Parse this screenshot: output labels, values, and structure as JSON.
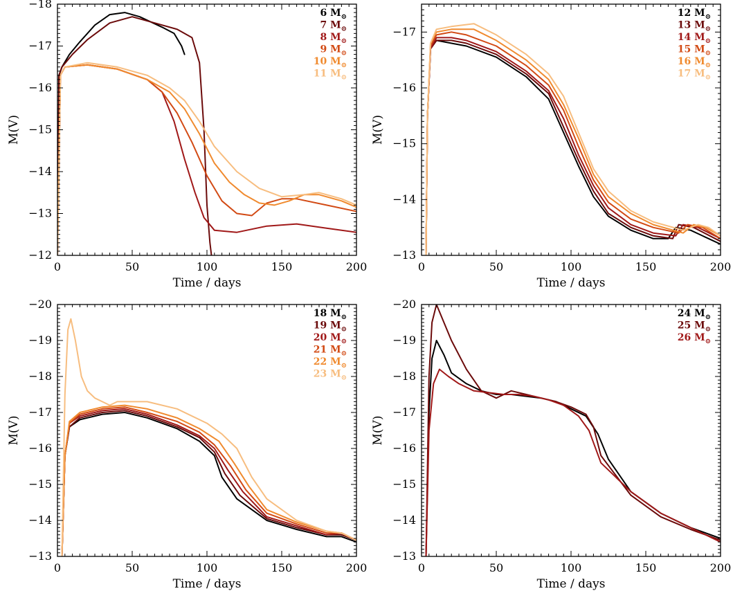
{
  "chart_data": [
    {
      "type": "line",
      "xlabel": "Time / days",
      "ylabel": "M(V)",
      "xlim": [
        0,
        200
      ],
      "ylim": [
        -12,
        -18
      ],
      "xticks": [
        "0",
        "50",
        "100",
        "150",
        "200"
      ],
      "yticks": [
        "−18",
        "−17",
        "−16",
        "−15",
        "−14",
        "−13",
        "−12"
      ],
      "legend_position": "top-right",
      "series": [
        {
          "name": "6",
          "unit": "M",
          "color": "#000000",
          "x": [
            0,
            1,
            3,
            8,
            15,
            25,
            35,
            45,
            55,
            70,
            78,
            83,
            85
          ],
          "y": [
            -12,
            -16.3,
            -16.5,
            -16.8,
            -17.1,
            -17.5,
            -17.75,
            -17.8,
            -17.7,
            -17.45,
            -17.3,
            -17.0,
            -16.8
          ]
        },
        {
          "name": "7",
          "unit": "M",
          "color": "#6b0a0a",
          "x": [
            0,
            1,
            3,
            10,
            20,
            35,
            50,
            65,
            80,
            90,
            95,
            98,
            100,
            102,
            103
          ],
          "y": [
            -12,
            -16.3,
            -16.5,
            -16.8,
            -17.15,
            -17.55,
            -17.7,
            -17.55,
            -17.4,
            -17.2,
            -16.6,
            -15.0,
            -13.2,
            -12.3,
            -12.0
          ]
        },
        {
          "name": "8",
          "unit": "M",
          "color": "#a01818",
          "x": [
            0,
            2,
            5,
            20,
            40,
            60,
            70,
            78,
            85,
            92,
            98,
            105,
            120,
            140,
            160,
            180,
            200
          ],
          "y": [
            -12,
            -16.3,
            -16.5,
            -16.55,
            -16.45,
            -16.2,
            -15.9,
            -15.2,
            -14.3,
            -13.5,
            -12.9,
            -12.6,
            -12.55,
            -12.7,
            -12.75,
            -12.65,
            -12.55
          ]
        },
        {
          "name": "9",
          "unit": "M",
          "color": "#d24a14",
          "x": [
            0,
            2,
            5,
            20,
            40,
            60,
            70,
            80,
            90,
            100,
            110,
            120,
            130,
            140,
            150,
            160,
            180,
            200
          ],
          "y": [
            -12,
            -16.3,
            -16.5,
            -16.55,
            -16.45,
            -16.2,
            -15.9,
            -15.4,
            -14.7,
            -13.9,
            -13.3,
            -13.0,
            -12.95,
            -13.25,
            -13.35,
            -13.35,
            -13.2,
            -13.05
          ]
        },
        {
          "name": "10",
          "unit": "M",
          "color": "#f08a2e",
          "x": [
            0,
            2,
            5,
            20,
            40,
            60,
            75,
            85,
            95,
            105,
            115,
            125,
            135,
            145,
            155,
            165,
            175,
            190,
            200
          ],
          "y": [
            -12,
            -16.3,
            -16.5,
            -16.55,
            -16.45,
            -16.2,
            -15.9,
            -15.5,
            -14.9,
            -14.2,
            -13.75,
            -13.45,
            -13.25,
            -13.2,
            -13.3,
            -13.45,
            -13.45,
            -13.3,
            -13.15
          ]
        },
        {
          "name": "11",
          "unit": "M",
          "color": "#f7bd7f",
          "x": [
            0,
            2,
            5,
            20,
            40,
            60,
            75,
            85,
            95,
            105,
            120,
            135,
            150,
            165,
            175,
            190,
            200
          ],
          "y": [
            -12,
            -16.3,
            -16.5,
            -16.6,
            -16.5,
            -16.3,
            -16.0,
            -15.7,
            -15.2,
            -14.6,
            -14.0,
            -13.6,
            -13.4,
            -13.45,
            -13.5,
            -13.35,
            -13.2
          ]
        }
      ]
    },
    {
      "type": "line",
      "xlabel": "Time / days",
      "ylabel": "M(V)",
      "xlim": [
        0,
        200
      ],
      "ylim": [
        -13,
        -17.5
      ],
      "xticks": [
        "0",
        "50",
        "100",
        "150",
        "200"
      ],
      "yticks": [
        "−17",
        "−16",
        "−15",
        "−14",
        "−13"
      ],
      "legend_position": "top-right",
      "series": [
        {
          "name": "12",
          "unit": "M",
          "color": "#000000",
          "x": [
            3,
            4,
            6,
            10,
            20,
            30,
            50,
            70,
            85,
            95,
            105,
            115,
            125,
            140,
            155,
            165,
            170,
            180,
            200
          ],
          "y": [
            -13,
            -15.5,
            -16.7,
            -16.85,
            -16.8,
            -16.75,
            -16.55,
            -16.2,
            -15.8,
            -15.2,
            -14.6,
            -14.05,
            -13.7,
            -13.45,
            -13.3,
            -13.3,
            -13.5,
            -13.45,
            -13.2
          ]
        },
        {
          "name": "13",
          "unit": "M",
          "color": "#6b0a0a",
          "x": [
            3,
            4,
            6,
            10,
            20,
            30,
            50,
            70,
            85,
            95,
            105,
            115,
            125,
            140,
            155,
            168,
            172,
            182,
            200
          ],
          "y": [
            -13,
            -15.5,
            -16.7,
            -16.85,
            -16.85,
            -16.8,
            -16.6,
            -16.25,
            -15.9,
            -15.3,
            -14.7,
            -14.15,
            -13.75,
            -13.5,
            -13.35,
            -13.3,
            -13.55,
            -13.5,
            -13.25
          ]
        },
        {
          "name": "14",
          "unit": "M",
          "color": "#a01818",
          "x": [
            3,
            4,
            6,
            10,
            20,
            30,
            50,
            70,
            85,
            95,
            105,
            115,
            125,
            140,
            155,
            170,
            175,
            185,
            200
          ],
          "y": [
            -13,
            -15.5,
            -16.7,
            -16.9,
            -16.9,
            -16.85,
            -16.65,
            -16.3,
            -15.95,
            -15.45,
            -14.8,
            -14.25,
            -13.85,
            -13.55,
            -13.4,
            -13.35,
            -13.55,
            -13.5,
            -13.3
          ]
        },
        {
          "name": "15",
          "unit": "M",
          "color": "#d24a14",
          "x": [
            3,
            4,
            6,
            10,
            20,
            30,
            50,
            70,
            85,
            95,
            105,
            115,
            125,
            140,
            155,
            172,
            178,
            188,
            200
          ],
          "y": [
            -13,
            -15.5,
            -16.75,
            -16.95,
            -17.0,
            -16.95,
            -16.75,
            -16.4,
            -16.05,
            -15.6,
            -14.95,
            -14.35,
            -13.95,
            -13.65,
            -13.5,
            -13.4,
            -13.55,
            -13.5,
            -13.3
          ]
        },
        {
          "name": "16",
          "unit": "M",
          "color": "#f08a2e",
          "x": [
            3,
            4,
            6,
            10,
            20,
            35,
            50,
            70,
            85,
            95,
            105,
            115,
            125,
            140,
            155,
            175,
            182,
            190,
            200
          ],
          "y": [
            -13,
            -15.5,
            -16.8,
            -17.0,
            -17.05,
            -17.05,
            -16.85,
            -16.5,
            -16.15,
            -15.7,
            -15.1,
            -14.45,
            -14.05,
            -13.75,
            -13.55,
            -13.4,
            -13.55,
            -13.5,
            -13.35
          ]
        },
        {
          "name": "17",
          "unit": "M",
          "color": "#f7bd7f",
          "x": [
            3,
            4,
            6,
            10,
            20,
            35,
            50,
            70,
            85,
            95,
            105,
            115,
            125,
            140,
            155,
            175,
            185,
            192,
            200
          ],
          "y": [
            -13,
            -15.5,
            -16.8,
            -17.05,
            -17.1,
            -17.15,
            -16.95,
            -16.6,
            -16.25,
            -15.85,
            -15.2,
            -14.55,
            -14.15,
            -13.8,
            -13.6,
            -13.45,
            -13.55,
            -13.5,
            -13.35
          ]
        }
      ]
    },
    {
      "type": "line",
      "xlabel": "Time / days",
      "ylabel": "M(V)",
      "xlim": [
        0,
        200
      ],
      "ylim": [
        -13,
        -20
      ],
      "xticks": [
        "0",
        "50",
        "100",
        "150",
        "200"
      ],
      "yticks": [
        "−20",
        "−19",
        "−18",
        "−17",
        "−16",
        "−15",
        "−14",
        "−13"
      ],
      "legend_position": "top-right",
      "series": [
        {
          "name": "18",
          "unit": "M",
          "color": "#000000",
          "x": [
            3,
            5,
            8,
            15,
            30,
            45,
            60,
            80,
            95,
            105,
            110,
            120,
            140,
            160,
            180,
            190,
            200
          ],
          "y": [
            -13,
            -15.8,
            -16.6,
            -16.8,
            -16.95,
            -17.0,
            -16.85,
            -16.55,
            -16.2,
            -15.8,
            -15.2,
            -14.6,
            -14.0,
            -13.75,
            -13.55,
            -13.55,
            -13.4
          ]
        },
        {
          "name": "19",
          "unit": "M",
          "color": "#6b0a0a",
          "x": [
            3,
            5,
            8,
            15,
            30,
            45,
            60,
            80,
            95,
            105,
            112,
            122,
            140,
            160,
            180,
            190,
            200
          ],
          "y": [
            -13,
            -15.8,
            -16.6,
            -16.85,
            -17.0,
            -17.05,
            -16.9,
            -16.6,
            -16.3,
            -15.9,
            -15.3,
            -14.7,
            -14.05,
            -13.8,
            -13.6,
            -13.6,
            -13.45
          ]
        },
        {
          "name": "20",
          "unit": "M",
          "color": "#a01818",
          "x": [
            3,
            5,
            8,
            15,
            30,
            45,
            60,
            80,
            95,
            105,
            114,
            124,
            140,
            160,
            180,
            190,
            200
          ],
          "y": [
            -13,
            -15.8,
            -16.7,
            -16.9,
            -17.05,
            -17.1,
            -16.95,
            -16.65,
            -16.35,
            -16.0,
            -15.4,
            -14.8,
            -14.1,
            -13.85,
            -13.6,
            -13.65,
            -13.45
          ]
        },
        {
          "name": "21",
          "unit": "M",
          "color": "#d24a14",
          "x": [
            3,
            5,
            8,
            15,
            30,
            45,
            60,
            80,
            95,
            105,
            116,
            126,
            140,
            160,
            180,
            190,
            200
          ],
          "y": [
            -13,
            -15.8,
            -16.7,
            -16.95,
            -17.1,
            -17.15,
            -17.0,
            -16.75,
            -16.45,
            -16.1,
            -15.5,
            -14.85,
            -14.2,
            -13.9,
            -13.65,
            -13.65,
            -13.45
          ]
        },
        {
          "name": "22",
          "unit": "M",
          "color": "#f08a2e",
          "x": [
            3,
            5,
            8,
            15,
            30,
            45,
            60,
            80,
            95,
            108,
            118,
            128,
            140,
            160,
            180,
            190,
            200
          ],
          "y": [
            -13,
            -15.8,
            -16.75,
            -17.0,
            -17.15,
            -17.2,
            -17.1,
            -16.85,
            -16.55,
            -16.2,
            -15.6,
            -14.95,
            -14.3,
            -13.95,
            -13.7,
            -13.65,
            -13.45
          ]
        },
        {
          "name": "23",
          "unit": "M",
          "color": "#f7bd7f",
          "x": [
            3,
            5,
            7,
            9,
            12,
            16,
            20,
            25,
            30,
            35,
            40,
            60,
            80,
            100,
            110,
            120,
            130,
            140,
            160,
            180,
            190,
            200
          ],
          "y": [
            -13,
            -17.5,
            -19.3,
            -19.6,
            -19.0,
            -18.0,
            -17.6,
            -17.4,
            -17.3,
            -17.2,
            -17.3,
            -17.3,
            -17.1,
            -16.7,
            -16.4,
            -16.0,
            -15.2,
            -14.6,
            -14.0,
            -13.7,
            -13.65,
            -13.45
          ]
        }
      ]
    },
    {
      "type": "line",
      "xlabel": "Time / days",
      "ylabel": "M(V)",
      "xlim": [
        0,
        200
      ],
      "ylim": [
        -13,
        -20
      ],
      "xticks": [
        "0",
        "50",
        "100",
        "150",
        "200"
      ],
      "yticks": [
        "−20",
        "−19",
        "−18",
        "−17",
        "−16",
        "−15",
        "−14",
        "−13"
      ],
      "legend_position": "top-right",
      "series": [
        {
          "name": "24",
          "unit": "M",
          "color": "#000000",
          "x": [
            3,
            5,
            7,
            10,
            15,
            20,
            30,
            40,
            50,
            60,
            70,
            80,
            90,
            100,
            110,
            118,
            125,
            140,
            160,
            180,
            200
          ],
          "y": [
            -13,
            -17.0,
            -18.5,
            -19.0,
            -18.6,
            -18.1,
            -17.8,
            -17.6,
            -17.5,
            -17.5,
            -17.45,
            -17.4,
            -17.3,
            -17.1,
            -16.9,
            -16.4,
            -15.7,
            -14.8,
            -14.2,
            -13.8,
            -13.5
          ]
        },
        {
          "name": "25",
          "unit": "M",
          "color": "#6b0a0a",
          "x": [
            3,
            5,
            7,
            10,
            14,
            20,
            30,
            40,
            50,
            60,
            70,
            80,
            90,
            100,
            110,
            115,
            120,
            140,
            160,
            180,
            200
          ],
          "y": [
            -13,
            -18.0,
            -19.5,
            -20.0,
            -19.6,
            -19.0,
            -18.2,
            -17.6,
            -17.4,
            -17.6,
            -17.5,
            -17.4,
            -17.3,
            -17.15,
            -16.95,
            -16.6,
            -15.8,
            -14.7,
            -14.1,
            -13.75,
            -13.45
          ]
        },
        {
          "name": "26",
          "unit": "M",
          "color": "#a01818",
          "x": [
            3,
            5,
            8,
            12,
            18,
            25,
            35,
            45,
            55,
            65,
            75,
            85,
            95,
            105,
            112,
            120,
            140,
            160,
            180,
            200
          ],
          "y": [
            -13,
            -16.5,
            -17.8,
            -18.2,
            -18.0,
            -17.8,
            -17.6,
            -17.55,
            -17.5,
            -17.5,
            -17.45,
            -17.35,
            -17.2,
            -16.9,
            -16.5,
            -15.6,
            -14.8,
            -14.2,
            -13.8,
            -13.4
          ]
        }
      ]
    }
  ]
}
